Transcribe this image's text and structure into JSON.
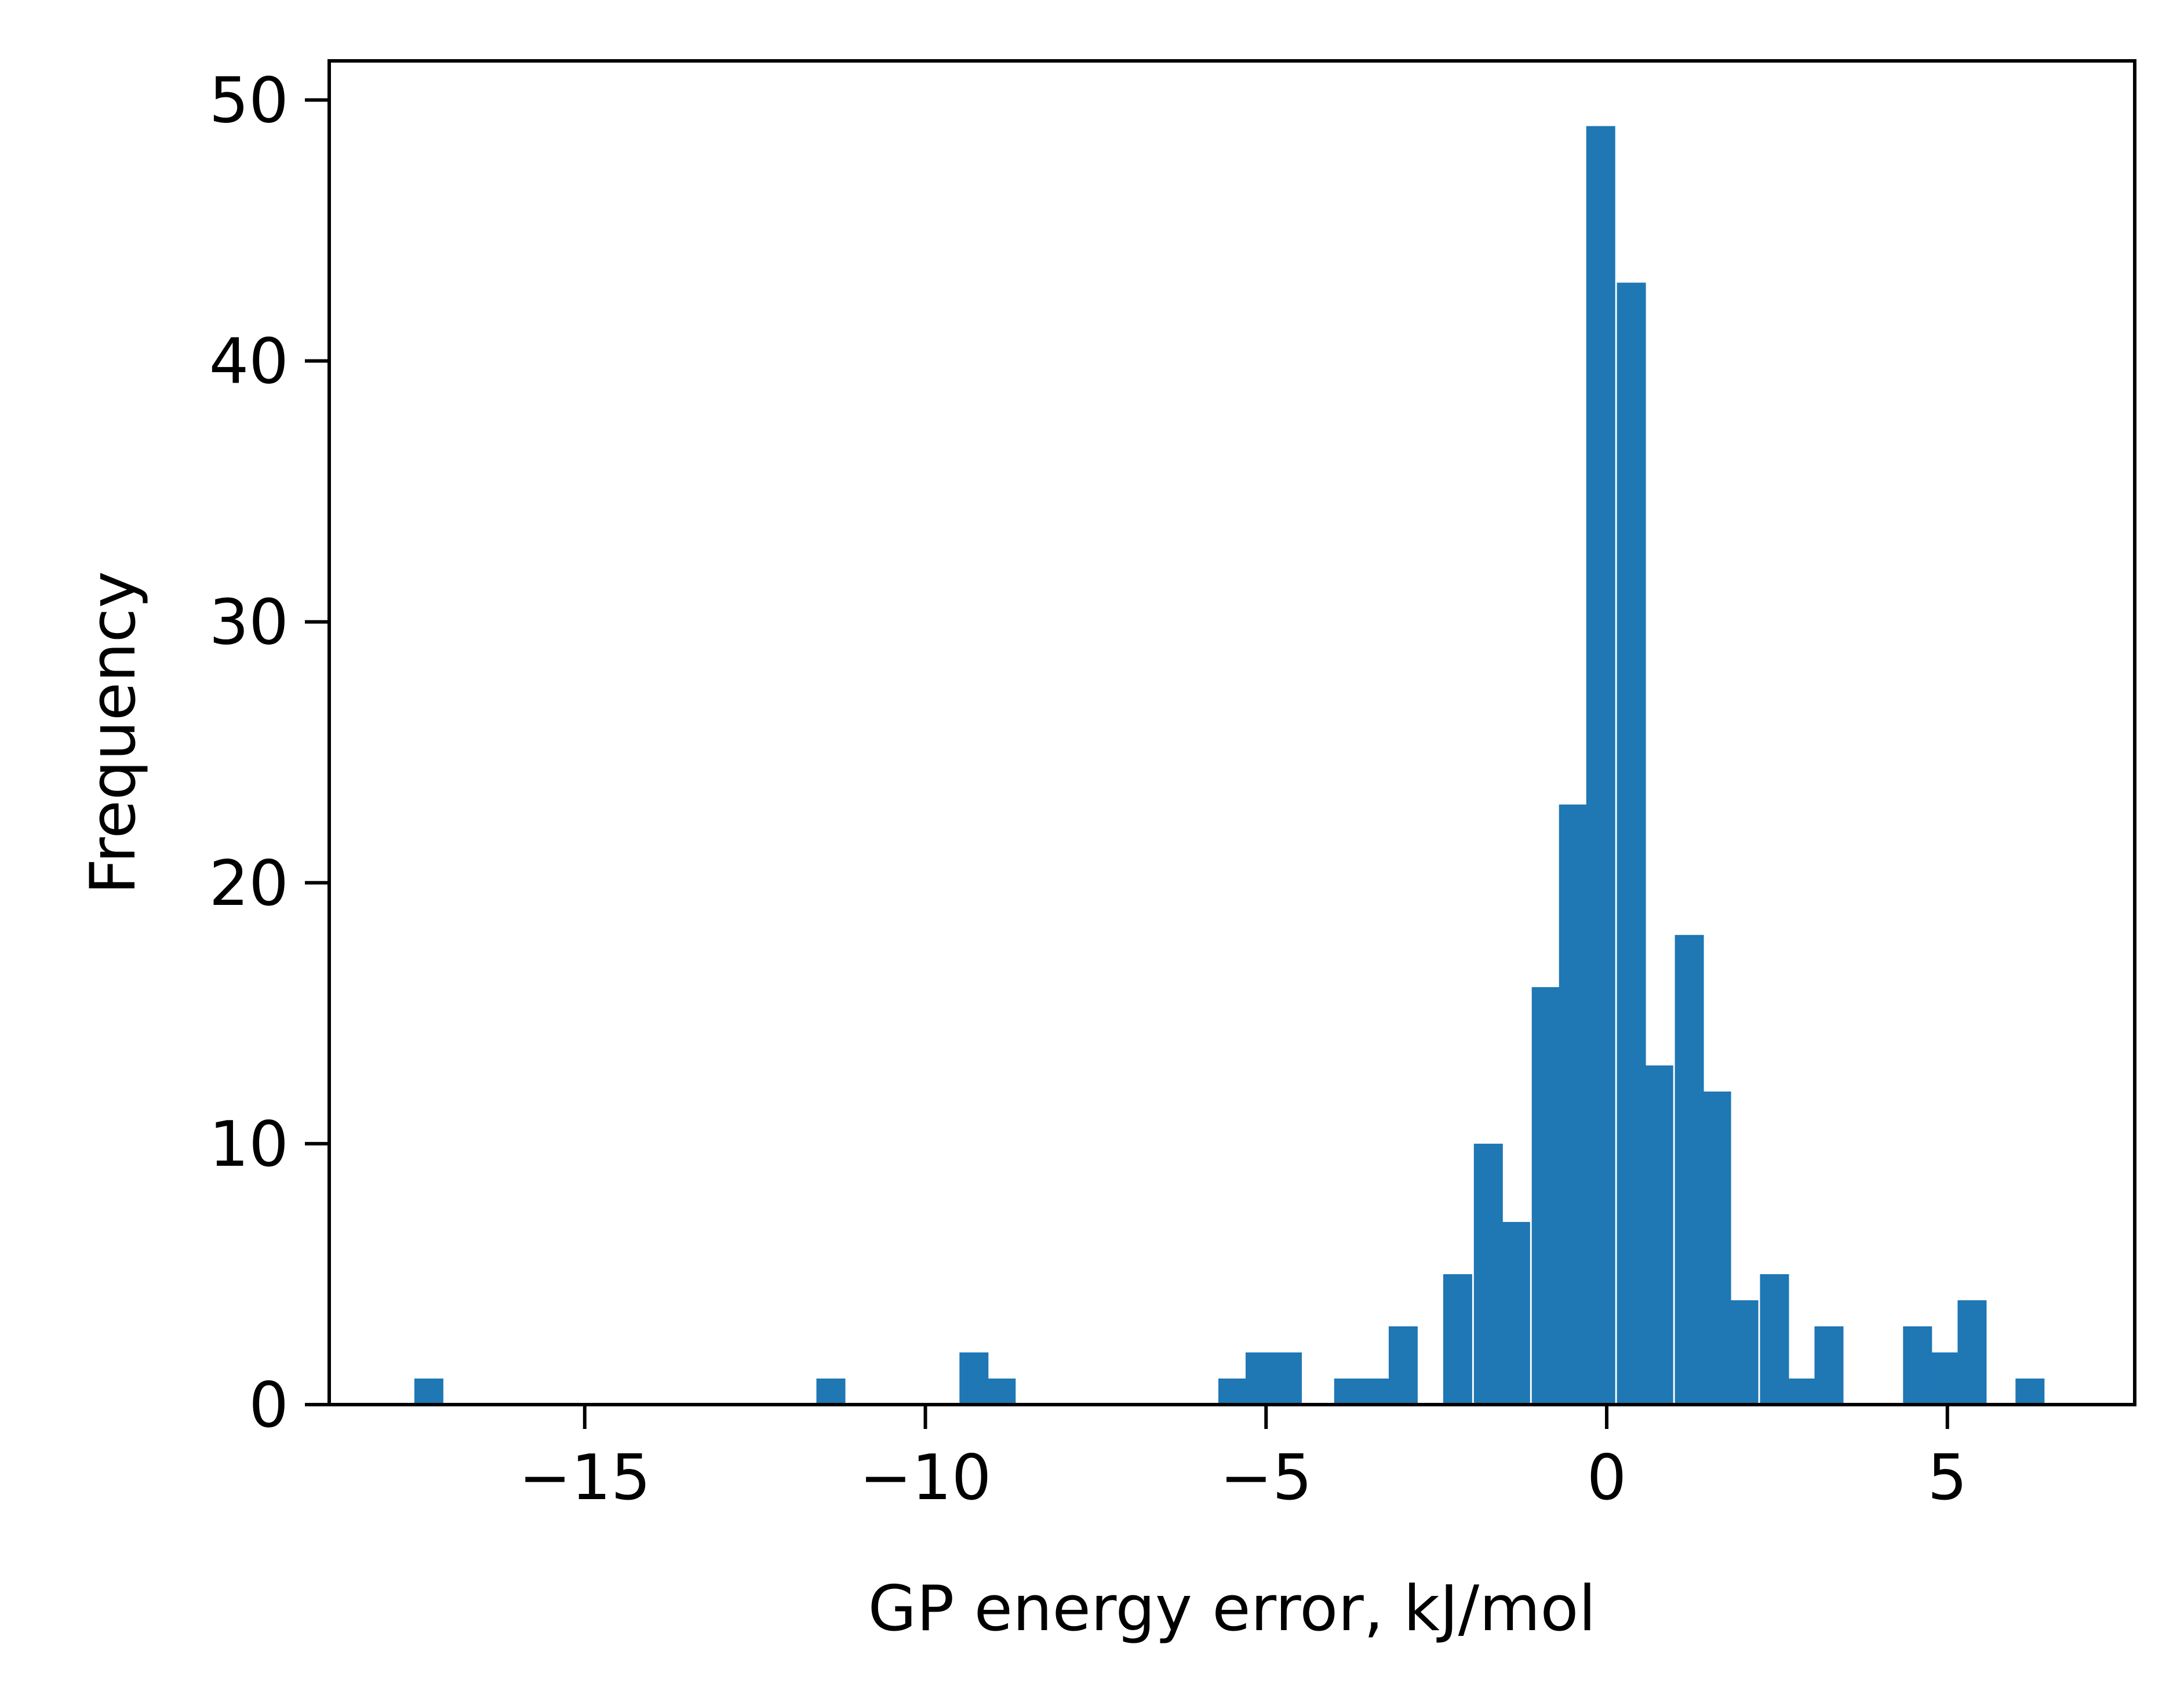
{
  "chart_data": {
    "type": "bar",
    "subtype": "histogram",
    "xlabel": "GP energy error, kJ/mol",
    "ylabel": "Frequency",
    "xlim": [
      -18.75,
      7.75
    ],
    "ylim": [
      0,
      51.5
    ],
    "xticks": [
      {
        "value": -15,
        "label": "−15"
      },
      {
        "value": -10,
        "label": "−10"
      },
      {
        "value": -5,
        "label": "−5"
      },
      {
        "value": 0,
        "label": "0"
      },
      {
        "value": 5,
        "label": "5"
      }
    ],
    "yticks": [
      {
        "value": 0,
        "label": "0"
      },
      {
        "value": 10,
        "label": "10"
      },
      {
        "value": 20,
        "label": "20"
      },
      {
        "value": 30,
        "label": "30"
      },
      {
        "value": 40,
        "label": "40"
      },
      {
        "value": 50,
        "label": "50"
      }
    ],
    "grid": false,
    "bar_color": "#1f77b4",
    "bin_width": 0.42,
    "bins": [
      {
        "x0": -17.5,
        "count": 1
      },
      {
        "x0": -11.6,
        "count": 1
      },
      {
        "x0": -9.5,
        "count": 2
      },
      {
        "x0": -9.1,
        "count": 1
      },
      {
        "x0": -5.7,
        "count": 1
      },
      {
        "x0": -5.3,
        "count": 2
      },
      {
        "x0": -4.9,
        "count": 2
      },
      {
        "x0": -4.0,
        "count": 1
      },
      {
        "x0": -3.6,
        "count": 1
      },
      {
        "x0": -3.2,
        "count": 3
      },
      {
        "x0": -2.4,
        "count": 5
      },
      {
        "x0": -1.95,
        "count": 10
      },
      {
        "x0": -1.55,
        "count": 7
      },
      {
        "x0": -1.1,
        "count": 16
      },
      {
        "x0": -0.7,
        "count": 23
      },
      {
        "x0": -0.3,
        "count": 49
      },
      {
        "x0": 0.15,
        "count": 43
      },
      {
        "x0": 0.55,
        "count": 13
      },
      {
        "x0": 1.0,
        "count": 18
      },
      {
        "x0": 1.4,
        "count": 12
      },
      {
        "x0": 1.8,
        "count": 4
      },
      {
        "x0": 2.25,
        "count": 5
      },
      {
        "x0": 2.65,
        "count": 1
      },
      {
        "x0": 3.05,
        "count": 3
      },
      {
        "x0": 4.35,
        "count": 3
      },
      {
        "x0": 4.75,
        "count": 2
      },
      {
        "x0": 5.15,
        "count": 4
      },
      {
        "x0": 6.0,
        "count": 1
      }
    ]
  }
}
